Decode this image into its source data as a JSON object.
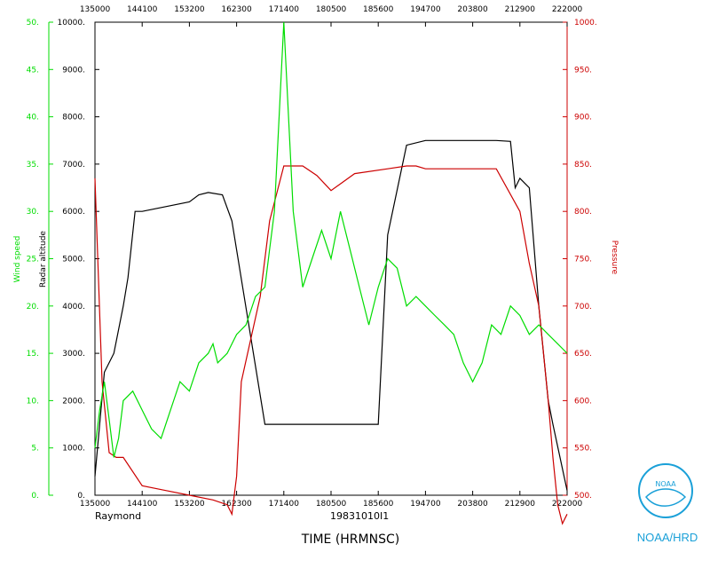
{
  "chart_data": {
    "type": "line",
    "xlabel": "TIME (HRMNSC)",
    "x_ticks_bottom": [
      "135000",
      "144100",
      "153200",
      "162300",
      "171400",
      "180500",
      "185600",
      "194700",
      "203800",
      "212900",
      "222000"
    ],
    "x_ticks_top": [
      "135000",
      "144100",
      "153200",
      "162300",
      "171400",
      "180500",
      "185600",
      "194700",
      "203800",
      "212900",
      "222000"
    ],
    "flight_id": "19831010I1",
    "storm_name": "Raymond",
    "axes": {
      "wind": {
        "label": "Wind speed",
        "ylim": [
          0,
          50
        ],
        "ticks": [
          "0.",
          "5.",
          "10.",
          "15.",
          "20.",
          "25.",
          "30.",
          "35.",
          "40.",
          "45.",
          "50."
        ],
        "color": "#00dd00"
      },
      "altitude": {
        "label": "Radar altitude",
        "ylim": [
          0,
          10000
        ],
        "ticks": [
          "0.",
          "1000.",
          "2000.",
          "3000.",
          "4000.",
          "5000.",
          "6000.",
          "7000.",
          "8000.",
          "9000.",
          "10000."
        ],
        "color": "#000000"
      },
      "pressure": {
        "label": "Pressure",
        "ylim": [
          500,
          1000
        ],
        "ticks": [
          "500.",
          "550.",
          "600.",
          "650.",
          "700.",
          "750.",
          "800.",
          "850.",
          "900.",
          "950.",
          "1000."
        ],
        "color": "#cc0000"
      }
    },
    "series": [
      {
        "name": "Radar altitude",
        "axis": "altitude",
        "color": "#000000",
        "x": [
          0,
          0.02,
          0.04,
          0.06,
          0.07,
          0.085,
          0.1,
          0.2,
          0.22,
          0.24,
          0.27,
          0.29,
          0.36,
          0.43,
          0.5,
          0.58,
          0.6,
          0.62,
          0.66,
          0.7,
          0.75,
          0.8,
          0.85,
          0.88,
          0.89,
          0.9,
          0.92,
          0.94,
          0.95,
          0.96,
          0.97,
          1.0
        ],
        "y": [
          400,
          2600,
          3000,
          4000,
          4600,
          6000,
          6000,
          6200,
          6350,
          6400,
          6350,
          5800,
          1500,
          1500,
          1500,
          1500,
          1500,
          5500,
          7400,
          7500,
          7500,
          7500,
          7500,
          7480,
          6500,
          6700,
          6500,
          4000,
          3000,
          2000,
          1500,
          100
        ]
      },
      {
        "name": "Pressure",
        "axis": "pressure",
        "color": "#cc0000",
        "x": [
          0,
          0.015,
          0.03,
          0.045,
          0.06,
          0.1,
          0.15,
          0.2,
          0.25,
          0.28,
          0.29,
          0.3,
          0.31,
          0.35,
          0.37,
          0.4,
          0.44,
          0.47,
          0.5,
          0.55,
          0.62,
          0.66,
          0.68,
          0.7,
          0.72,
          0.75,
          0.8,
          0.85,
          0.9,
          0.92,
          0.94,
          0.95,
          0.96,
          0.97,
          0.98,
          0.99,
          1.0
        ],
        "y": [
          835,
          620,
          545,
          540,
          540,
          510,
          505,
          500,
          495,
          490,
          480,
          520,
          620,
          710,
          790,
          848,
          848,
          838,
          822,
          840,
          845,
          848,
          848,
          845,
          845,
          845,
          845,
          845,
          800,
          745,
          700,
          650,
          600,
          540,
          490,
          470,
          480
        ]
      },
      {
        "name": "Wind speed",
        "axis": "wind",
        "color": "#00dd00",
        "x": [
          0,
          0.01,
          0.02,
          0.03,
          0.04,
          0.05,
          0.06,
          0.08,
          0.1,
          0.12,
          0.14,
          0.16,
          0.18,
          0.2,
          0.22,
          0.24,
          0.25,
          0.26,
          0.28,
          0.3,
          0.32,
          0.34,
          0.36,
          0.37,
          0.38,
          0.39,
          0.4,
          0.42,
          0.44,
          0.46,
          0.48,
          0.5,
          0.52,
          0.54,
          0.56,
          0.58,
          0.6,
          0.62,
          0.64,
          0.66,
          0.68,
          0.7,
          0.72,
          0.74,
          0.76,
          0.78,
          0.8,
          0.82,
          0.84,
          0.86,
          0.88,
          0.9,
          0.92,
          0.94,
          0.96,
          0.98,
          1.0
        ],
        "y": [
          5,
          9,
          12,
          8,
          4,
          6,
          10,
          11,
          9,
          7,
          6,
          9,
          12,
          11,
          14,
          15,
          16,
          14,
          15,
          17,
          18,
          21,
          22,
          26,
          30,
          40,
          50,
          30,
          22,
          25,
          28,
          25,
          30,
          26,
          22,
          18,
          22,
          25,
          24,
          20,
          21,
          20,
          19,
          18,
          17,
          14,
          12,
          14,
          18,
          17,
          20,
          19,
          17,
          18,
          17,
          16,
          15
        ]
      }
    ]
  },
  "logo": {
    "emblem_text": "NOAA",
    "caption": "NOAA/HRD"
  }
}
